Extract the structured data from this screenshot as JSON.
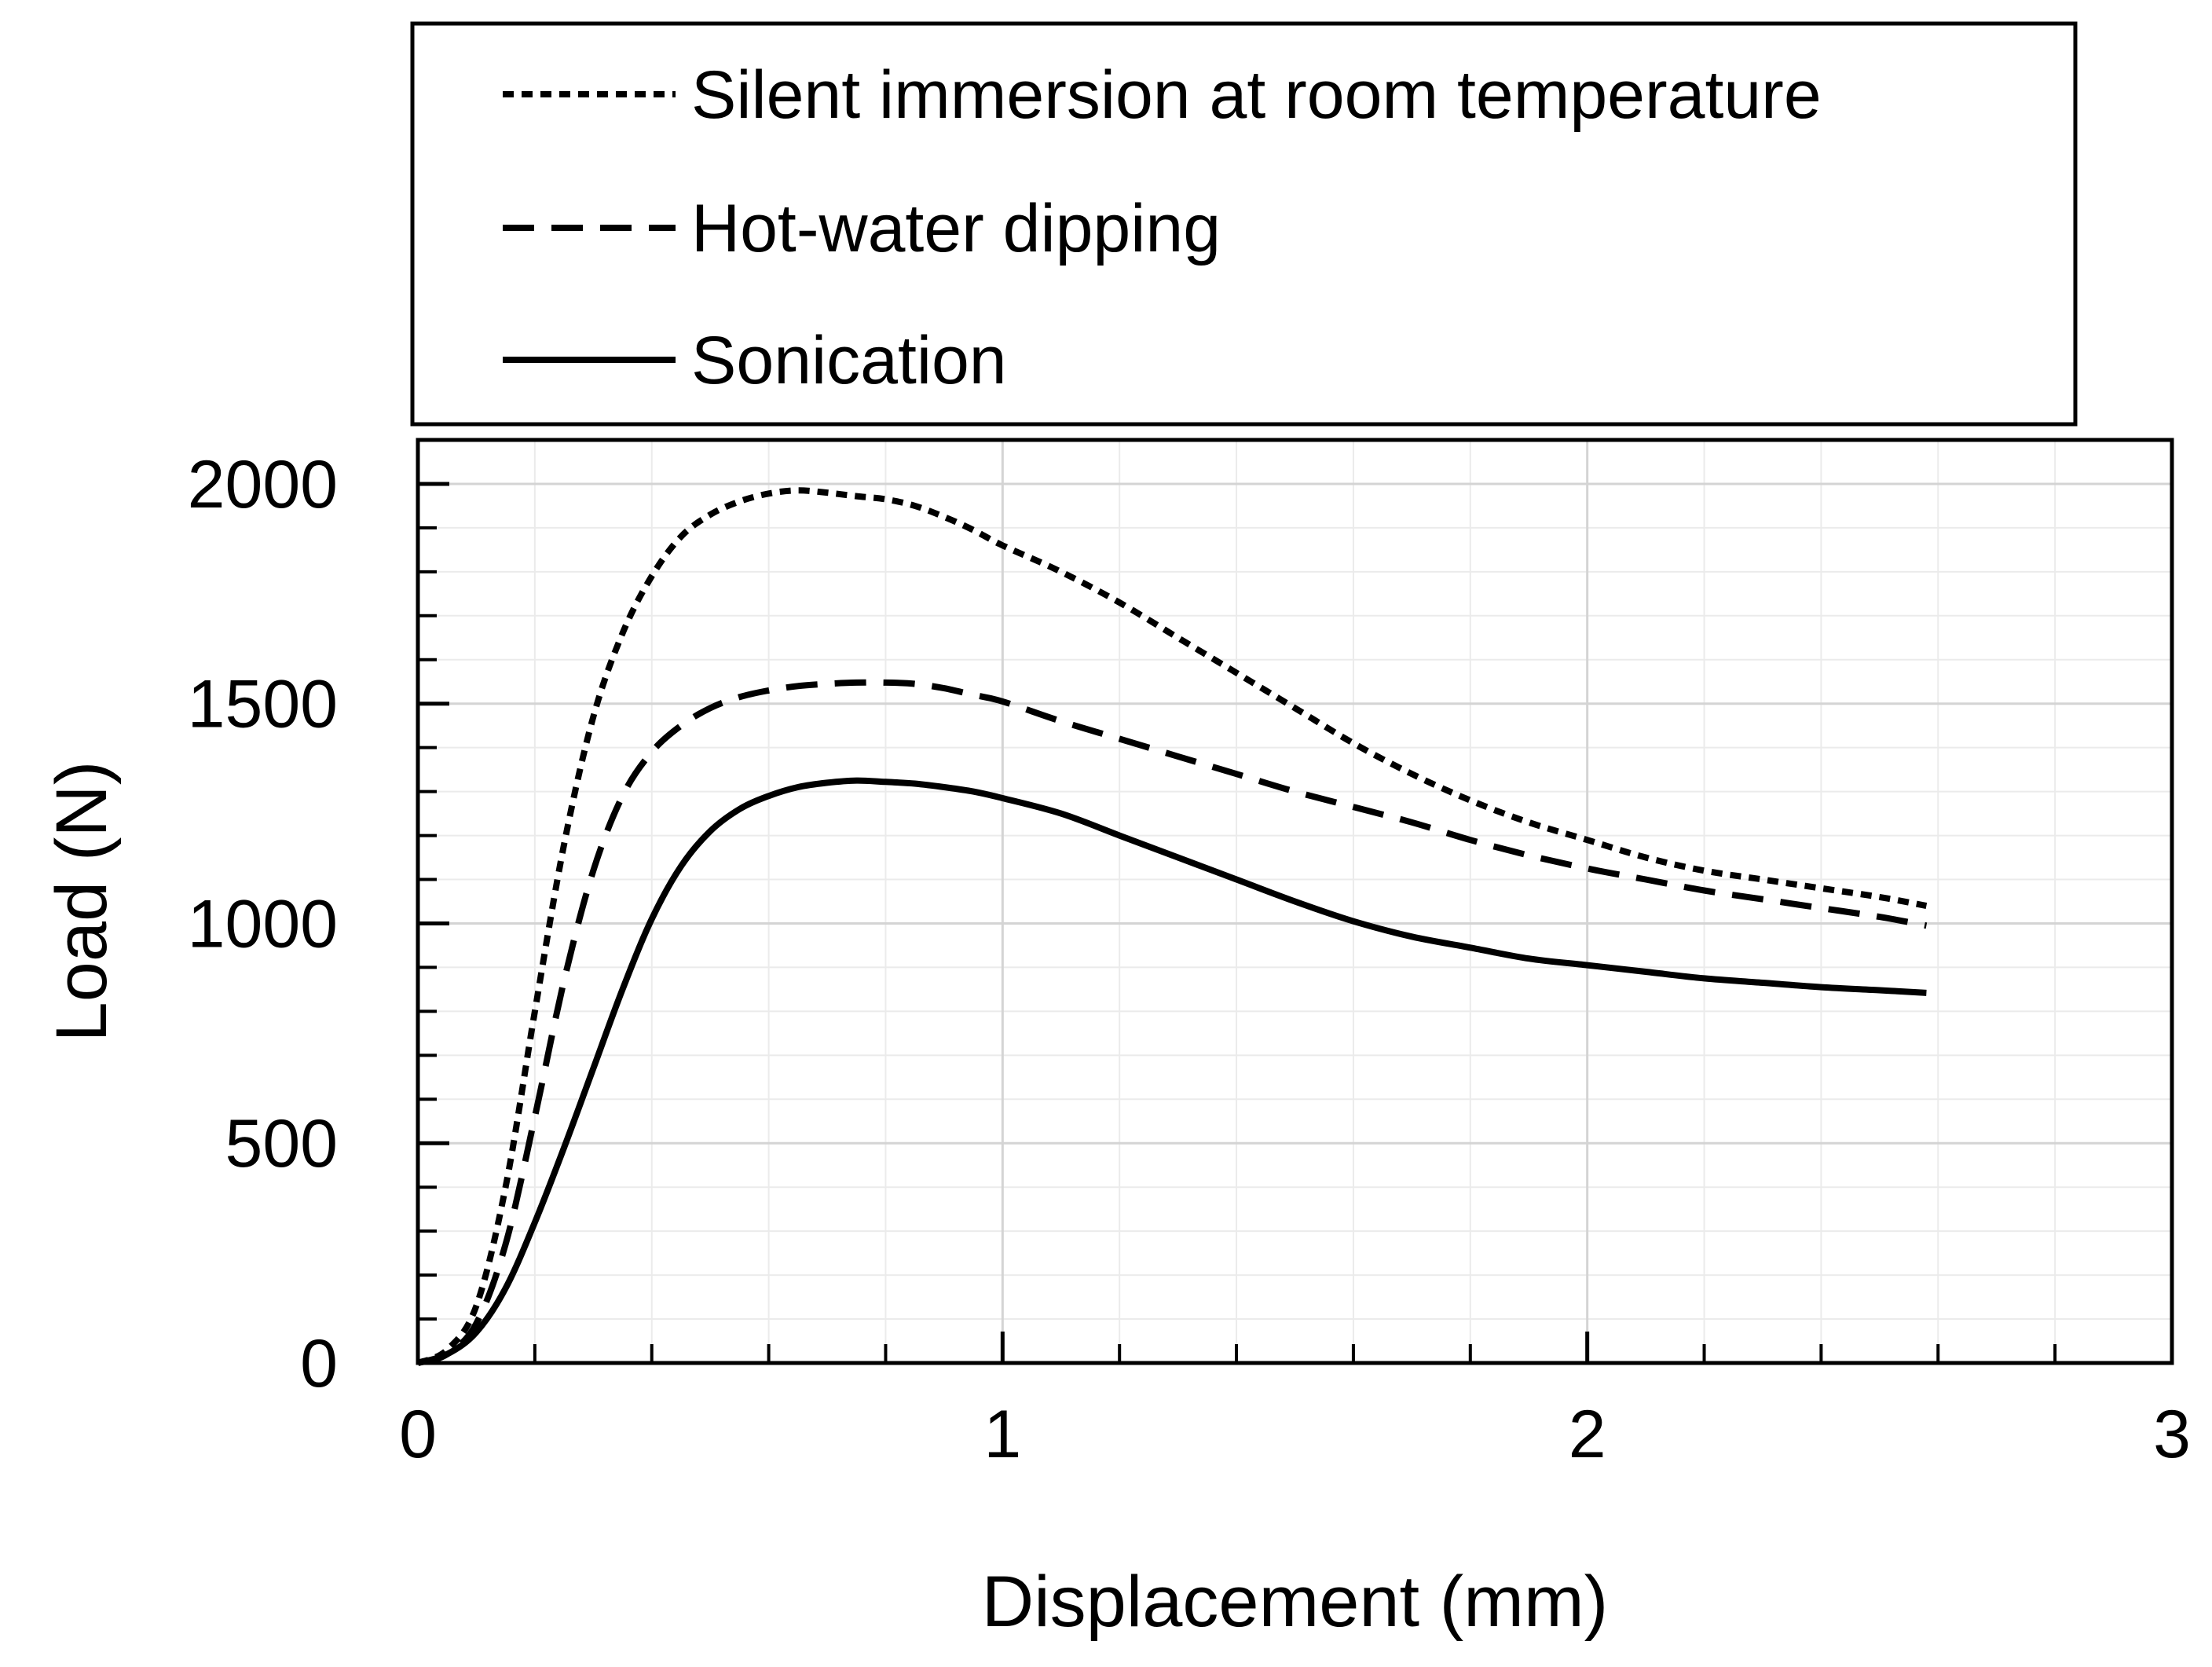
{
  "chart_data": {
    "type": "line",
    "title": "",
    "xlabel": "Displacement (mm)",
    "ylabel": "Load (N)",
    "xlim": [
      0,
      3
    ],
    "ylim": [
      0,
      2100
    ],
    "xticks": [
      0,
      1,
      2,
      3
    ],
    "yticks": [
      0,
      500,
      1000,
      1500,
      2000
    ],
    "x_minor_step": 0.2,
    "y_minor_step": 100,
    "grid": true,
    "legend_position": "top, above plot",
    "series": [
      {
        "name": "Silent immersion at room temperature",
        "line_style": "dotted",
        "color": "#000000",
        "x": [
          0,
          0.05,
          0.1,
          0.15,
          0.2,
          0.25,
          0.3,
          0.35,
          0.4,
          0.45,
          0.5,
          0.55,
          0.6,
          0.65,
          0.7,
          0.75,
          0.8,
          0.85,
          0.9,
          0.95,
          1.0,
          1.1,
          1.2,
          1.3,
          1.4,
          1.5,
          1.6,
          1.7,
          1.8,
          1.9,
          2.0,
          2.1,
          2.2,
          2.3,
          2.4,
          2.5,
          2.58
        ],
        "y": [
          0,
          30,
          130,
          400,
          800,
          1180,
          1470,
          1660,
          1790,
          1880,
          1930,
          1960,
          1978,
          1985,
          1980,
          1972,
          1965,
          1950,
          1925,
          1895,
          1860,
          1800,
          1730,
          1650,
          1570,
          1490,
          1410,
          1340,
          1280,
          1230,
          1190,
          1150,
          1120,
          1100,
          1080,
          1060,
          1040
        ]
      },
      {
        "name": "Hot-water dipping",
        "line_style": "dashed",
        "color": "#000000",
        "x": [
          0,
          0.05,
          0.1,
          0.15,
          0.2,
          0.25,
          0.3,
          0.35,
          0.4,
          0.45,
          0.5,
          0.55,
          0.6,
          0.65,
          0.7,
          0.75,
          0.8,
          0.85,
          0.9,
          0.95,
          1.0,
          1.1,
          1.2,
          1.3,
          1.4,
          1.5,
          1.6,
          1.7,
          1.8,
          1.9,
          2.0,
          2.1,
          2.2,
          2.3,
          2.4,
          2.5,
          2.58
        ],
        "y": [
          0,
          20,
          90,
          270,
          560,
          870,
          1120,
          1290,
          1390,
          1450,
          1490,
          1515,
          1530,
          1540,
          1545,
          1548,
          1548,
          1545,
          1535,
          1520,
          1505,
          1460,
          1420,
          1380,
          1340,
          1300,
          1265,
          1230,
          1190,
          1155,
          1125,
          1100,
          1075,
          1055,
          1035,
          1015,
          995
        ]
      },
      {
        "name": "Sonication",
        "line_style": "solid",
        "color": "#000000",
        "x": [
          0,
          0.05,
          0.1,
          0.15,
          0.2,
          0.25,
          0.3,
          0.35,
          0.4,
          0.45,
          0.5,
          0.55,
          0.6,
          0.65,
          0.7,
          0.75,
          0.8,
          0.85,
          0.9,
          0.95,
          1.0,
          1.1,
          1.2,
          1.3,
          1.4,
          1.5,
          1.6,
          1.7,
          1.8,
          1.9,
          2.0,
          2.1,
          2.2,
          2.3,
          2.4,
          2.5,
          2.58
        ],
        "y": [
          0,
          20,
          70,
          170,
          320,
          490,
          670,
          850,
          1010,
          1130,
          1210,
          1260,
          1290,
          1310,
          1320,
          1325,
          1322,
          1318,
          1310,
          1300,
          1285,
          1250,
          1200,
          1150,
          1100,
          1050,
          1005,
          970,
          945,
          920,
          905,
          890,
          875,
          865,
          855,
          848,
          842
        ]
      }
    ]
  }
}
